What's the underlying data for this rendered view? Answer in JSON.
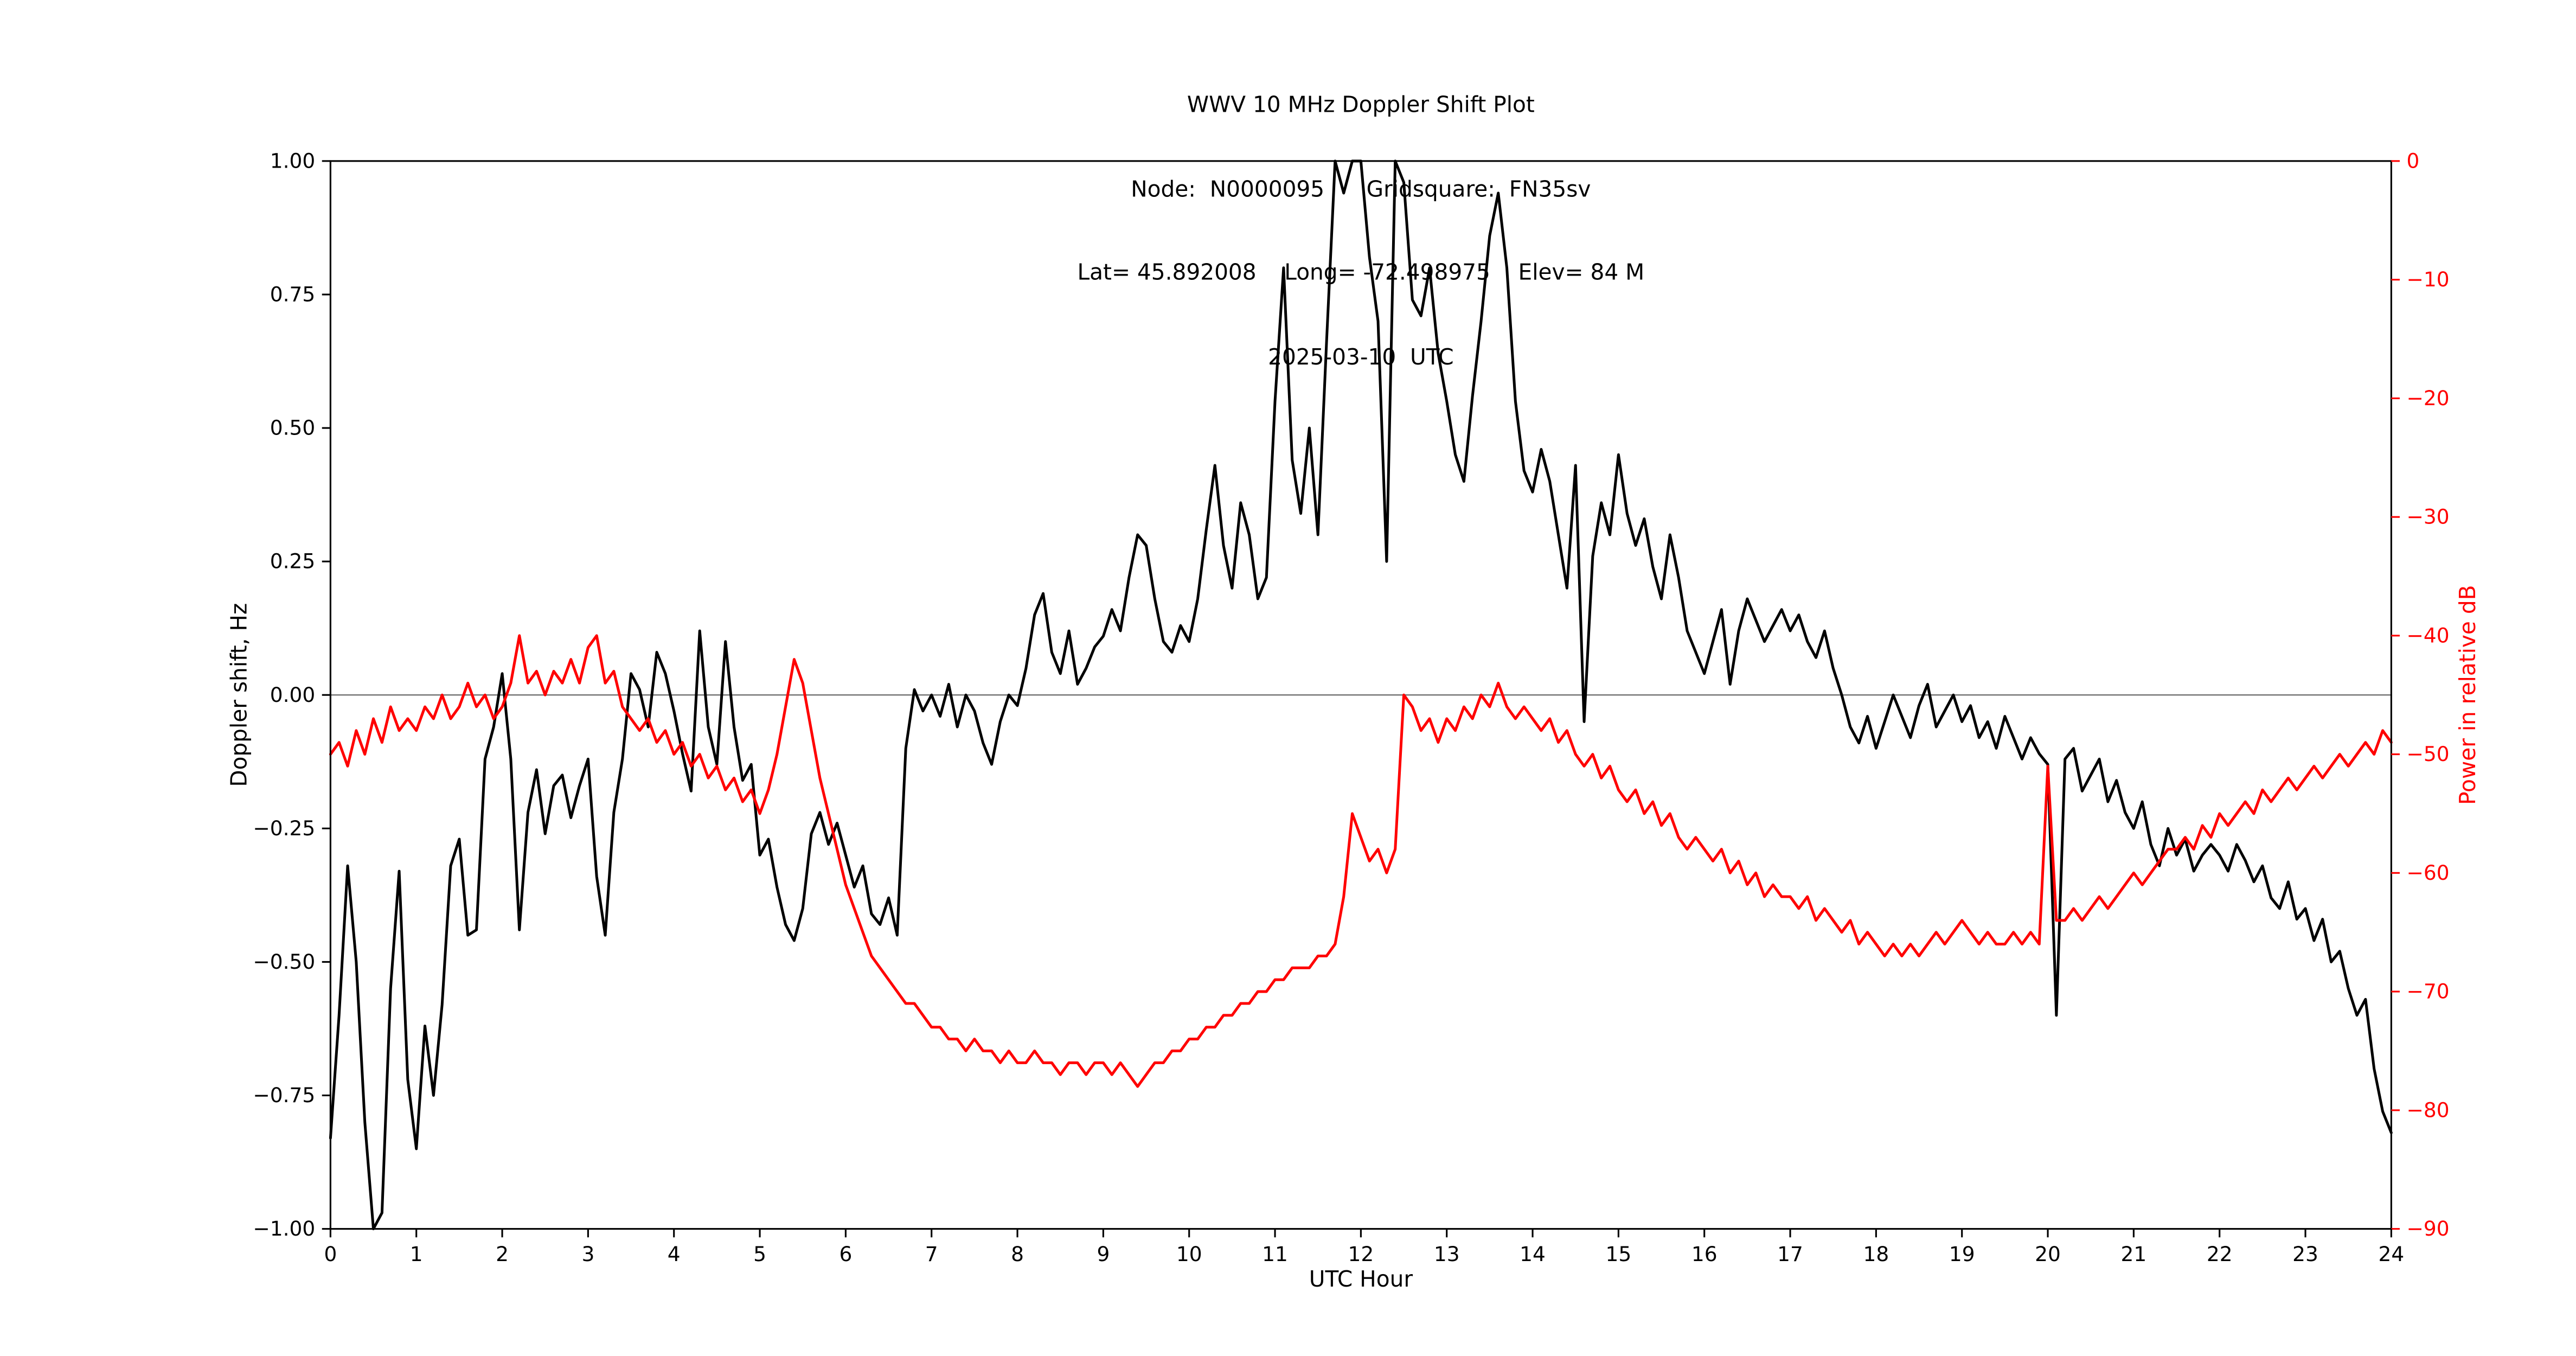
{
  "chart_data": {
    "type": "line",
    "title": "WWV 10 MHz Doppler Shift Plot",
    "subtitle": [
      "Node:  N0000095      Gridsquare:  FN35sv",
      "Lat= 45.892008    Long= -72.498975    Elev= 84 M",
      "2025-03-10  UTC"
    ],
    "xlabel": "UTC Hour",
    "ylabel_left": "Doppler shift, Hz",
    "ylabel_right": "Power in relative dB",
    "x_range": [
      0,
      24
    ],
    "y_left_range": [
      -1.0,
      1.0
    ],
    "y_right_range": [
      -90,
      0
    ],
    "grid": false,
    "legend": "none",
    "x_ticks": [
      0,
      1,
      2,
      3,
      4,
      5,
      6,
      7,
      8,
      9,
      10,
      11,
      12,
      13,
      14,
      15,
      16,
      17,
      18,
      19,
      20,
      21,
      22,
      23,
      24
    ],
    "x_tick_labels": [
      "0",
      "1",
      "2",
      "3",
      "4",
      "5",
      "6",
      "7",
      "8",
      "9",
      "10",
      "11",
      "12",
      "13",
      "14",
      "15",
      "16",
      "17",
      "18",
      "19",
      "20",
      "21",
      "22",
      "23",
      "24"
    ],
    "y_left_ticks": [
      1.0,
      0.75,
      0.5,
      0.25,
      0.0,
      -0.25,
      -0.5,
      -0.75,
      -1.0
    ],
    "y_left_tick_labels": [
      "1.00",
      "0.75",
      "0.50",
      "0.25",
      "0.00",
      "−0.25",
      "−0.50",
      "−0.75",
      "−1.00"
    ],
    "y_right_ticks": [
      0,
      -10,
      -20,
      -30,
      -40,
      -50,
      -60,
      -70,
      -80,
      -90
    ],
    "y_right_tick_labels": [
      "0",
      "−10",
      "−20",
      "−30",
      "−40",
      "−50",
      "−60",
      "−70",
      "−80",
      "−90"
    ],
    "zero_line_left": 0.0,
    "colors": {
      "doppler": "#000000",
      "power": "#ff0000",
      "zero_line": "#808080",
      "axis": "#000000"
    },
    "x_start": 0,
    "x_step": 0.1,
    "series": [
      {
        "name": "Doppler shift (Hz)",
        "axis": "left",
        "color": "#000000",
        "values": [
          -0.83,
          -0.6,
          -0.32,
          -0.5,
          -0.8,
          -1,
          -0.97,
          -0.55,
          -0.33,
          -0.72,
          -0.85,
          -0.62,
          -0.75,
          -0.58,
          -0.32,
          -0.27,
          -0.45,
          -0.44,
          -0.12,
          -0.06,
          0.04,
          -0.12,
          -0.44,
          -0.22,
          -0.14,
          -0.26,
          -0.17,
          -0.15,
          -0.23,
          -0.17,
          -0.12,
          -0.34,
          -0.45,
          -0.22,
          -0.12,
          0.04,
          0.01,
          -0.06,
          0.08,
          0.04,
          -0.03,
          -0.11,
          -0.18,
          0.12,
          -0.06,
          -0.13,
          0.1,
          -0.06,
          -0.16,
          -0.13,
          -0.3,
          -0.27,
          -0.36,
          -0.43,
          -0.46,
          -0.4,
          -0.26,
          -0.22,
          -0.28,
          -0.24,
          -0.3,
          -0.36,
          -0.32,
          -0.41,
          -0.43,
          -0.38,
          -0.45,
          -0.1,
          0.01,
          -0.03,
          0,
          -0.04,
          0.02,
          -0.06,
          0,
          -0.03,
          -0.09,
          -0.13,
          -0.05,
          0,
          -0.02,
          0.05,
          0.15,
          0.19,
          0.08,
          0.04,
          0.12,
          0.02,
          0.05,
          0.09,
          0.11,
          0.16,
          0.12,
          0.22,
          0.3,
          0.28,
          0.18,
          0.1,
          0.08,
          0.13,
          0.1,
          0.18,
          0.31,
          0.43,
          0.28,
          0.2,
          0.36,
          0.3,
          0.18,
          0.22,
          0.55,
          0.8,
          0.44,
          0.34,
          0.5,
          0.3,
          0.66,
          1,
          0.94,
          1,
          1,
          0.82,
          0.7,
          0.25,
          1,
          0.96,
          0.74,
          0.71,
          0.8,
          0.64,
          0.55,
          0.45,
          0.4,
          0.56,
          0.7,
          0.86,
          0.94,
          0.8,
          0.55,
          0.42,
          0.38,
          0.46,
          0.4,
          0.3,
          0.2,
          0.43,
          -0.05,
          0.26,
          0.36,
          0.3,
          0.45,
          0.34,
          0.28,
          0.33,
          0.24,
          0.18,
          0.3,
          0.22,
          0.12,
          0.08,
          0.04,
          0.1,
          0.16,
          0.02,
          0.12,
          0.18,
          0.14,
          0.1,
          0.13,
          0.16,
          0.12,
          0.15,
          0.1,
          0.07,
          0.12,
          0.05,
          0,
          -0.06,
          -0.09,
          -0.04,
          -0.1,
          -0.05,
          0,
          -0.04,
          -0.08,
          -0.02,
          0.02,
          -0.06,
          -0.03,
          0,
          -0.05,
          -0.02,
          -0.08,
          -0.05,
          -0.1,
          -0.04,
          -0.08,
          -0.12,
          -0.08,
          -0.11,
          -0.13,
          -0.6,
          -0.12,
          -0.1,
          -0.18,
          -0.15,
          -0.12,
          -0.2,
          -0.16,
          -0.22,
          -0.25,
          -0.2,
          -0.28,
          -0.32,
          -0.25,
          -0.3,
          -0.27,
          -0.33,
          -0.3,
          -0.28,
          -0.3,
          -0.33,
          -0.28,
          -0.31,
          -0.35,
          -0.32,
          -0.38,
          -0.4,
          -0.35,
          -0.42,
          -0.4,
          -0.46,
          -0.42,
          -0.5,
          -0.48,
          -0.55,
          -0.6,
          -0.57,
          -0.7,
          -0.78,
          -0.82
        ]
      },
      {
        "name": "Power (relative dB)",
        "axis": "right",
        "color": "#ff0000",
        "values": [
          -50,
          -49,
          -51,
          -48,
          -50,
          -47,
          -49,
          -46,
          -48,
          -47,
          -48,
          -46,
          -47,
          -45,
          -47,
          -46,
          -44,
          -46,
          -45,
          -47,
          -46,
          -44,
          -40,
          -44,
          -43,
          -45,
          -43,
          -44,
          -42,
          -44,
          -41,
          -40,
          -44,
          -43,
          -46,
          -47,
          -48,
          -47,
          -49,
          -48,
          -50,
          -49,
          -51,
          -50,
          -52,
          -51,
          -53,
          -52,
          -54,
          -53,
          -55,
          -53,
          -50,
          -46,
          -42,
          -44,
          -48,
          -52,
          -55,
          -58,
          -61,
          -63,
          -65,
          -67,
          -68,
          -69,
          -70,
          -71,
          -71,
          -72,
          -73,
          -73,
          -74,
          -74,
          -75,
          -74,
          -75,
          -75,
          -76,
          -75,
          -76,
          -76,
          -75,
          -76,
          -76,
          -77,
          -76,
          -76,
          -77,
          -76,
          -76,
          -77,
          -76,
          -77,
          -78,
          -77,
          -76,
          -76,
          -75,
          -75,
          -74,
          -74,
          -73,
          -73,
          -72,
          -72,
          -71,
          -71,
          -70,
          -70,
          -69,
          -69,
          -68,
          -68,
          -68,
          -67,
          -67,
          -66,
          -62,
          -55,
          -57,
          -59,
          -58,
          -60,
          -58,
          -45,
          -46,
          -48,
          -47,
          -49,
          -47,
          -48,
          -46,
          -47,
          -45,
          -46,
          -44,
          -46,
          -47,
          -46,
          -47,
          -48,
          -47,
          -49,
          -48,
          -50,
          -51,
          -50,
          -52,
          -51,
          -53,
          -54,
          -53,
          -55,
          -54,
          -56,
          -55,
          -57,
          -58,
          -57,
          -58,
          -59,
          -58,
          -60,
          -59,
          -61,
          -60,
          -62,
          -61,
          -62,
          -62,
          -63,
          -62,
          -64,
          -63,
          -64,
          -65,
          -64,
          -66,
          -65,
          -66,
          -67,
          -66,
          -67,
          -66,
          -67,
          -66,
          -65,
          -66,
          -65,
          -64,
          -65,
          -66,
          -65,
          -66,
          -66,
          -65,
          -66,
          -65,
          -66,
          -51,
          -64,
          -64,
          -63,
          -64,
          -63,
          -62,
          -63,
          -62,
          -61,
          -60,
          -61,
          -60,
          -59,
          -58,
          -58,
          -57,
          -58,
          -56,
          -57,
          -55,
          -56,
          -55,
          -54,
          -55,
          -53,
          -54,
          -53,
          -52,
          -53,
          -52,
          -51,
          -52,
          -51,
          -50,
          -51,
          -50,
          -49,
          -50,
          -48,
          -49
        ]
      }
    ]
  }
}
